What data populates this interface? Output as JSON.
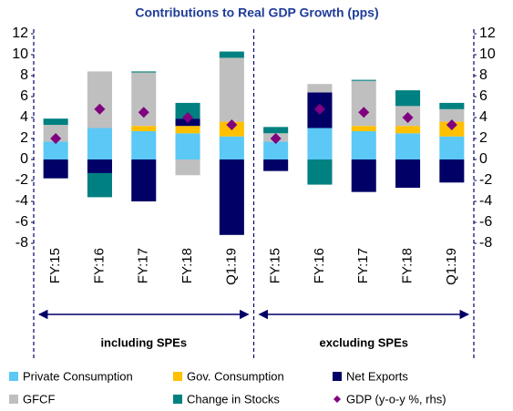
{
  "chart_data": {
    "type": "bar",
    "stacked": true,
    "title": "Contributions to Real GDP Growth (pps)",
    "categories": [
      "FY:15",
      "FY:16",
      "FY:17",
      "FY:18",
      "Q1:19",
      "FY:15",
      "FY:16",
      "FY:17",
      "FY:18",
      "Q1:19"
    ],
    "groups": [
      "including SPEs",
      "excluding SPEs"
    ],
    "series": [
      {
        "name": "Private Consumption",
        "color": "#5bc8f5",
        "values": [
          1.7,
          3.0,
          2.7,
          2.5,
          2.2,
          1.7,
          3.0,
          2.7,
          2.5,
          2.2
        ]
      },
      {
        "name": "Gov. Consumption",
        "color": "#ffc000",
        "values": [
          0,
          0,
          0.5,
          0.7,
          1.4,
          0,
          0,
          0.5,
          0.7,
          1.4
        ]
      },
      {
        "name": "Net Exports",
        "color": "#000066",
        "values": [
          -1.8,
          -1.3,
          -4.0,
          0.7,
          -7.2,
          -1.1,
          3.4,
          -3.1,
          -2.7,
          -2.2
        ]
      },
      {
        "name": "GFCF",
        "color": "#bfbfbf",
        "values": [
          1.6,
          5.4,
          5.1,
          -1.5,
          6.1,
          0.8,
          0.8,
          4.3,
          1.9,
          1.2
        ]
      },
      {
        "name": "Change in Stocks",
        "color": "#008080",
        "values": [
          0.6,
          -2.3,
          0.1,
          1.5,
          0.6,
          0.6,
          -2.4,
          0.1,
          1.5,
          0.6
        ]
      },
      {
        "name": "GDP (y-o-y %, rhs)",
        "color": "#800080",
        "type": "scatter",
        "axis": "y2",
        "values": [
          2.0,
          4.8,
          4.5,
          4.0,
          3.3,
          2.0,
          4.8,
          4.5,
          4.0,
          3.3
        ]
      }
    ],
    "ylim": [
      -8,
      12
    ],
    "yticks": [
      -8,
      -6,
      -4,
      -2,
      0,
      2,
      4,
      6,
      8,
      10,
      12
    ],
    "y2lim": [
      -8,
      12
    ],
    "y2ticks": [
      -8,
      -6,
      -4,
      -2,
      0,
      2,
      4,
      6,
      8,
      10,
      12
    ],
    "legend": "bottom"
  }
}
